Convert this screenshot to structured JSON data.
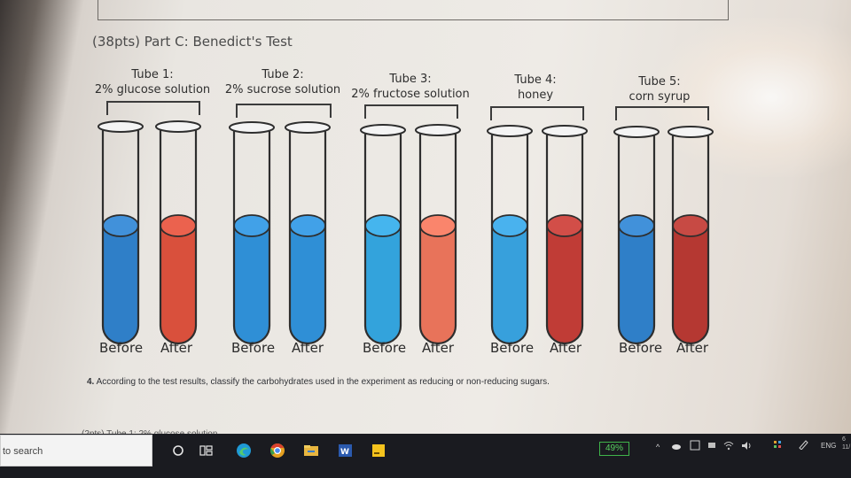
{
  "section_title": "(38pts) Part C: Benedict's Test",
  "tubes": [
    {
      "title": "Tube 1:",
      "subtitle": "2% glucose solution",
      "before_label": "Before",
      "after_label": "After",
      "before_color": "#2f7fc8",
      "after_color": "#d9503c"
    },
    {
      "title": "Tube 2:",
      "subtitle": "2% sucrose solution",
      "before_label": "Before",
      "after_label": "After",
      "before_color": "#2f8fd6",
      "after_color": "#2f8fd6"
    },
    {
      "title": "Tube 3:",
      "subtitle": "2% fructose solution",
      "before_label": "Before",
      "after_label": "After",
      "before_color": "#33a3dc",
      "after_color": "#e8735a"
    },
    {
      "title": "Tube 4:",
      "subtitle": "honey",
      "before_label": "Before",
      "after_label": "After",
      "before_color": "#37a0dc",
      "after_color": "#c03c36"
    },
    {
      "title": "Tube 5:",
      "subtitle": "corn syrup",
      "before_label": "Before",
      "after_label": "After",
      "before_color": "#2f7fc8",
      "after_color": "#b53832"
    }
  ],
  "question": {
    "number": "4.",
    "text": "According to the test results, classify the carbohydrates used in the experiment as reducing or non-reducing sugars."
  },
  "cut_off_text": "(2pts)  Tube 1: 2% glucose solution",
  "taskbar": {
    "search_text": "to search",
    "battery": "49%",
    "language": "ENG",
    "clock_line1": "6",
    "clock_line2": "11/"
  }
}
